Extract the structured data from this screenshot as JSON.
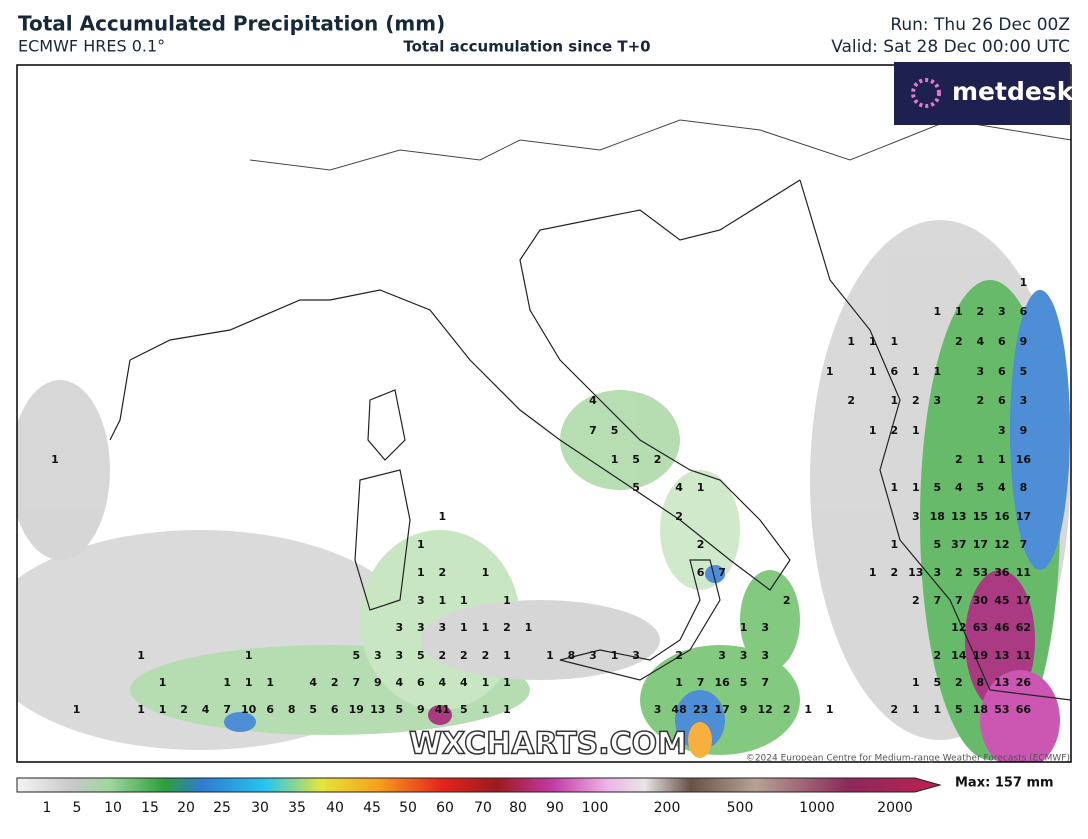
{
  "header": {
    "title": "Total Accumulated Precipitation (mm)",
    "model": "ECMWF HRES 0.1°",
    "subtitle": "Total accumulation since T+0",
    "run": "Run: Thu 26 Dec 00Z",
    "valid": "Valid: Sat 28 Dec 00:00 UTC"
  },
  "logo": "metdesk",
  "watermark": "WXCHARTS.COM",
  "copyright": "©2024 European Centre for Medium-range Weather Forecasts (ECMWF)",
  "map_labels": [
    [
      "1"
    ],
    [
      "1",
      "1",
      "2",
      "3",
      "6"
    ],
    [
      "1",
      "1",
      "1",
      "2",
      "4",
      "6",
      "9"
    ],
    [
      "1",
      "1",
      "6",
      "1",
      "1",
      "3",
      "6",
      "5"
    ],
    [
      "4",
      "2",
      "1",
      "2",
      "3",
      "2",
      "6",
      "3"
    ],
    [
      "7",
      "5",
      "1",
      "2",
      "1",
      "3",
      "9"
    ],
    [
      "1",
      "1",
      "5",
      "2",
      "2",
      "1",
      "1",
      "16"
    ],
    [
      "5",
      "4",
      "1",
      "1",
      "1",
      "5",
      "4",
      "5",
      "4",
      "8"
    ],
    [
      "1",
      "2",
      "3",
      "18",
      "13",
      "15",
      "16",
      "17"
    ],
    [
      "1",
      "2",
      "1",
      "5",
      "37",
      "17",
      "12",
      "7"
    ],
    [
      "1",
      "2",
      "1",
      "6",
      "7",
      "1",
      "2",
      "13",
      "3",
      "2",
      "53",
      "36",
      "11"
    ],
    [
      "3",
      "1",
      "1",
      "1",
      "2",
      "2",
      "7",
      "7",
      "30",
      "45",
      "17"
    ],
    [
      "3",
      "3",
      "3",
      "1",
      "1",
      "2",
      "1",
      "1",
      "3",
      "12",
      "63",
      "46",
      "62"
    ],
    [
      "1",
      "1",
      "5",
      "3",
      "3",
      "5",
      "2",
      "2",
      "2",
      "1",
      "1",
      "8",
      "3",
      "1",
      "3",
      "2",
      "3",
      "3",
      "3",
      "2",
      "14",
      "19",
      "13",
      "11"
    ],
    [
      "1",
      "1",
      "1",
      "1",
      "4",
      "2",
      "7",
      "9",
      "4",
      "6",
      "4",
      "4",
      "1",
      "1",
      "1",
      "7",
      "16",
      "5",
      "7",
      "1",
      "5",
      "2",
      "8",
      "13",
      "26"
    ],
    [
      "1",
      "1",
      "1",
      "2",
      "4",
      "7",
      "10",
      "6",
      "8",
      "5",
      "6",
      "19",
      "13",
      "5",
      "9",
      "41",
      "5",
      "1",
      "1",
      "3",
      "48",
      "23",
      "17",
      "9",
      "12",
      "2",
      "1",
      "1",
      "2",
      "1",
      "1",
      "5",
      "18",
      "53",
      "66"
    ]
  ],
  "colorbar": {
    "ticks": [
      "1",
      "5",
      "10",
      "15",
      "20",
      "25",
      "30",
      "35",
      "40",
      "45",
      "50",
      "60",
      "70",
      "80",
      "90",
      "100",
      "200",
      "500",
      "1000",
      "2000"
    ],
    "max": "Max: 157 mm"
  }
}
